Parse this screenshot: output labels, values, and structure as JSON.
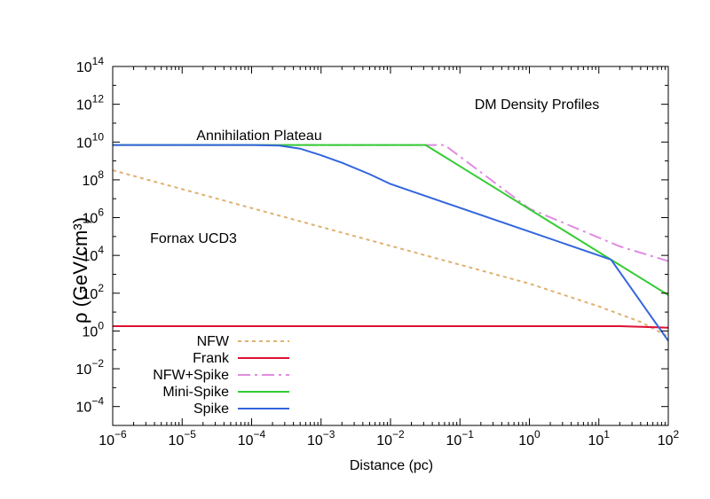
{
  "chart_data": {
    "type": "line",
    "title": "DM Density Profiles",
    "xlabel": "Distance (pc)",
    "ylabel": "ρ (GeV/cm³)",
    "x_scale": "log",
    "y_scale": "log",
    "xlim": [
      1e-06,
      100
    ],
    "ylim": [
      1e-05,
      100000000000000.0
    ],
    "grid": false,
    "legend_position": "bottom-left",
    "x_ticks": [
      {
        "base": "10",
        "exp": "−6"
      },
      {
        "base": "10",
        "exp": "−5"
      },
      {
        "base": "10",
        "exp": "−4"
      },
      {
        "base": "10",
        "exp": "−3"
      },
      {
        "base": "10",
        "exp": "−2"
      },
      {
        "base": "10",
        "exp": "−1"
      },
      {
        "base": "10",
        "exp": "0"
      },
      {
        "base": "10",
        "exp": "1"
      },
      {
        "base": "10",
        "exp": "2"
      }
    ],
    "y_ticks": [
      {
        "base": "10",
        "exp": "−4"
      },
      {
        "base": "10",
        "exp": "−2"
      },
      {
        "base": "10",
        "exp": "0"
      },
      {
        "base": "10",
        "exp": "2"
      },
      {
        "base": "10",
        "exp": "4"
      },
      {
        "base": "10",
        "exp": "6"
      },
      {
        "base": "10",
        "exp": "8"
      },
      {
        "base": "10",
        "exp": "10"
      },
      {
        "base": "10",
        "exp": "12"
      },
      {
        "base": "10",
        "exp": "14"
      }
    ],
    "annotations": {
      "plateau": "Annihilation Plateau",
      "galaxy": "Fornax UCD3"
    },
    "series": [
      {
        "name": "NFW",
        "color": "#e0b070",
        "dash": "dotted",
        "points": [
          [
            1e-06,
            320000000.0
          ],
          [
            1e-05,
            32000000.0
          ],
          [
            0.0001,
            3200000.0
          ],
          [
            0.001,
            320000.0
          ],
          [
            0.01,
            32000.0
          ],
          [
            0.1,
            3200.0
          ],
          [
            1,
            320.0
          ],
          [
            10,
            20
          ],
          [
            40,
            3
          ],
          [
            100,
            0.5
          ]
        ]
      },
      {
        "name": "Frank",
        "color": "#dd1133",
        "dash": "solid",
        "points": [
          [
            1e-06,
            1.8
          ],
          [
            20,
            1.8
          ],
          [
            60,
            1.6
          ],
          [
            100,
            1.5
          ]
        ]
      },
      {
        "name": "NFW+Spike",
        "color": "#e08ce0",
        "dash": "dashdot",
        "points": [
          [
            1e-06,
            7000000000.0
          ],
          [
            0.06,
            7000000000.0
          ],
          [
            1,
            3000000.0
          ],
          [
            20,
            30000.0
          ],
          [
            100,
            5000.0
          ]
        ]
      },
      {
        "name": "Mini-Spike",
        "color": "#33cc33",
        "dash": "solid",
        "points": [
          [
            1e-06,
            7000000000.0
          ],
          [
            0.032,
            7000000000.0
          ],
          [
            100,
            80
          ]
        ]
      },
      {
        "name": "Spike",
        "color": "#3366dd",
        "dash": "solid",
        "points": [
          [
            1e-06,
            7000000000.0
          ],
          [
            0.0001,
            7000000000.0
          ],
          [
            0.00025,
            6500000000.0
          ],
          [
            0.0005,
            4500000000.0
          ],
          [
            0.001,
            2000000000.0
          ],
          [
            0.002,
            800000000.0
          ],
          [
            0.005,
            200000000.0
          ],
          [
            0.01,
            60000000.0
          ],
          [
            15,
            6000.0
          ],
          [
            100,
            0.3
          ]
        ]
      }
    ]
  }
}
